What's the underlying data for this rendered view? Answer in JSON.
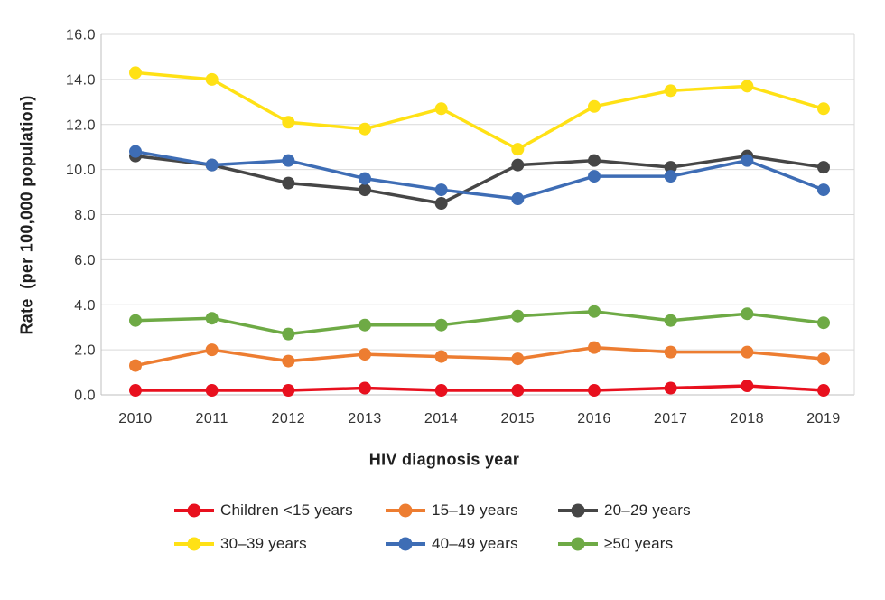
{
  "figure": {
    "background": "#FFFFFF",
    "gridline_color": "#D9D9D9",
    "axis_line_color": "#BFBFBF",
    "text_color": "#333333"
  },
  "chart_data": {
    "type": "line",
    "title": "",
    "xlabel": "HIV diagnosis year",
    "ylabel": "Rate  (per 100,000 population)",
    "x": [
      "2010",
      "2011",
      "2012",
      "2013",
      "2014",
      "2015",
      "2016",
      "2017",
      "2018",
      "2019"
    ],
    "ylim": [
      0,
      16
    ],
    "ytick_step": 2,
    "ytick_labels": [
      "0.0",
      "2.0",
      "4.0",
      "6.0",
      "8.0",
      "10.0",
      "12.0",
      "14.0",
      "16.0"
    ],
    "grid": true,
    "legend_position": "bottom",
    "series": [
      {
        "name": "Children <15 years",
        "color": "#E8101E",
        "values": [
          0.2,
          0.2,
          0.2,
          0.3,
          0.2,
          0.2,
          0.2,
          0.3,
          0.4,
          0.2
        ]
      },
      {
        "name": "15–19 years",
        "color": "#ED7D31",
        "values": [
          1.3,
          2.0,
          1.5,
          1.8,
          1.7,
          1.6,
          2.1,
          1.9,
          1.9,
          1.6
        ]
      },
      {
        "name": "20–29 years",
        "color": "#464646",
        "values": [
          10.6,
          10.2,
          9.4,
          9.1,
          8.5,
          10.2,
          10.4,
          10.1,
          10.6,
          10.1
        ]
      },
      {
        "name": "30–39 years",
        "color": "#FFE115",
        "values": [
          14.3,
          14.0,
          12.1,
          11.8,
          12.7,
          10.9,
          12.8,
          13.5,
          13.7,
          12.7
        ]
      },
      {
        "name": "40–49 years",
        "color": "#3E6DB5",
        "values": [
          10.8,
          10.2,
          10.4,
          9.6,
          9.1,
          8.7,
          9.7,
          9.7,
          10.4,
          9.1
        ]
      },
      {
        "name": "≥50 years",
        "color": "#6EAA45",
        "values": [
          3.3,
          3.4,
          2.7,
          3.1,
          3.1,
          3.5,
          3.7,
          3.3,
          3.6,
          3.2
        ]
      }
    ]
  }
}
